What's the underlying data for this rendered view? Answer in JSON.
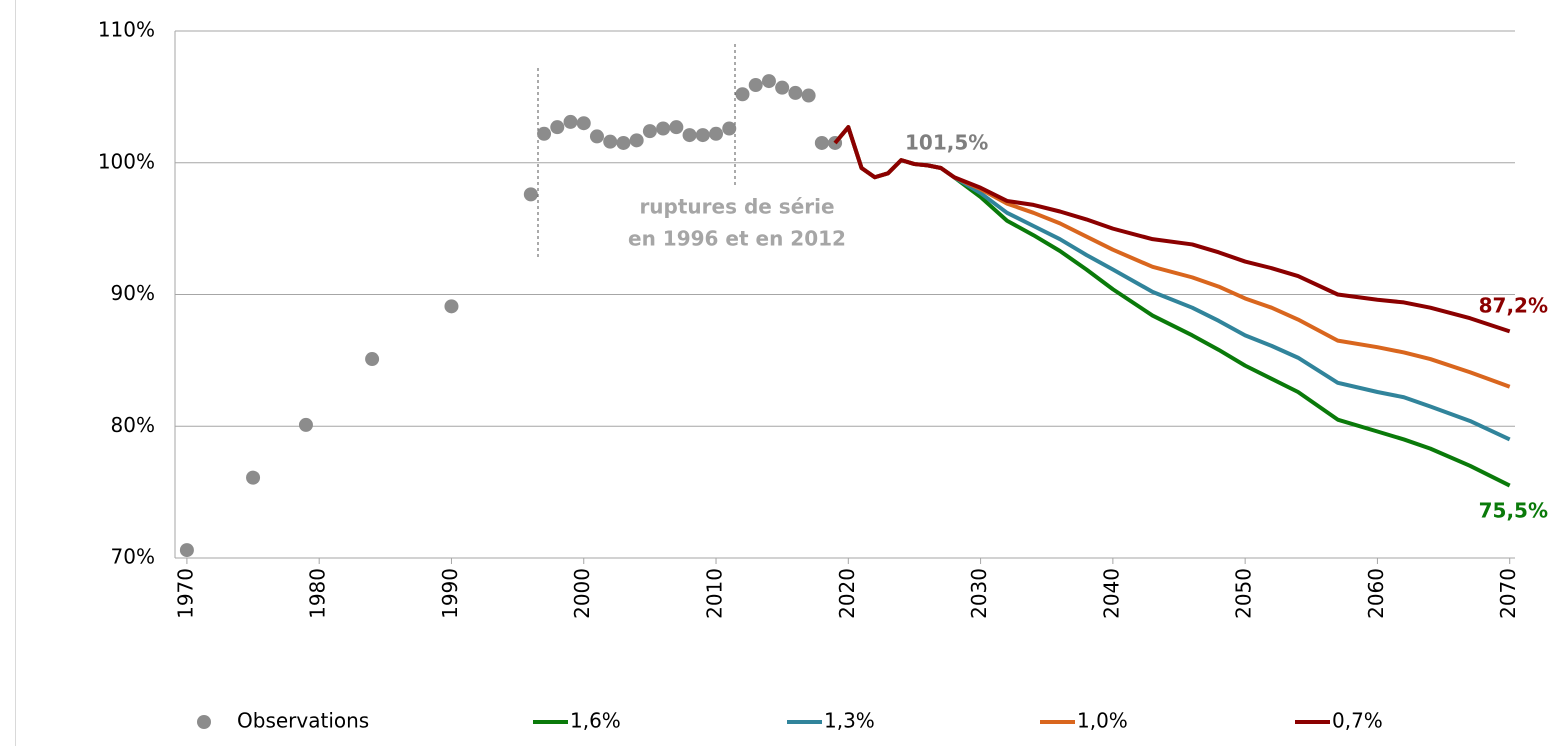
{
  "chart_data": {
    "type": "line",
    "xlim": [
      1969.1,
      2070.4
    ],
    "xticks": [
      1970,
      1980,
      1990,
      2000,
      2010,
      2020,
      2030,
      2040,
      2050,
      2060,
      2070
    ],
    "ylim": [
      70,
      110
    ],
    "yticks": [
      {
        "value": 70,
        "label": "70%"
      },
      {
        "value": 80,
        "label": "80%"
      },
      {
        "value": 90,
        "label": "90%"
      },
      {
        "value": 100,
        "label": "100%"
      },
      {
        "value": 110,
        "label": "110%"
      }
    ],
    "grid": true,
    "legend": "bottom",
    "series": [
      {
        "name": "Observations",
        "color": "#8c8c8c",
        "style": "markers",
        "x": [
          1970,
          1975,
          1979,
          1984,
          1990,
          1996,
          1997,
          1998,
          1999,
          2000,
          2001,
          2002,
          2003,
          2004,
          2005,
          2006,
          2007,
          2008,
          2009,
          2010,
          2011,
          2012,
          2013,
          2014,
          2015,
          2016,
          2017,
          2018,
          2019
        ],
        "values": [
          70.6,
          76.1,
          80.1,
          85.1,
          89.1,
          97.6,
          102.2,
          102.7,
          103.1,
          103.0,
          102.0,
          101.6,
          101.5,
          101.7,
          102.4,
          102.6,
          102.7,
          102.1,
          102.1,
          102.2,
          102.6,
          105.2,
          105.9,
          106.2,
          105.7,
          105.3,
          105.1,
          101.5,
          101.5
        ]
      },
      {
        "name": "1,6%",
        "color": "#0a7a0a",
        "style": "line",
        "x": [
          2019,
          2020,
          2021,
          2022,
          2023,
          2024,
          2025,
          2026,
          2027,
          2028,
          2030,
          2032,
          2034,
          2036,
          2038,
          2040,
          2043,
          2046,
          2048,
          2050,
          2052,
          2054,
          2057,
          2060,
          2062,
          2064,
          2067,
          2070
        ],
        "values": [
          101.5,
          102.7,
          99.6,
          98.9,
          99.2,
          100.2,
          99.9,
          99.8,
          99.6,
          98.9,
          97.4,
          95.6,
          94.5,
          93.3,
          91.9,
          90.4,
          88.4,
          86.9,
          85.8,
          84.6,
          83.6,
          82.6,
          80.5,
          79.6,
          79.0,
          78.3,
          77.0,
          75.5
        ]
      },
      {
        "name": "1,3%",
        "color": "#31849b",
        "style": "line",
        "x": [
          2019,
          2020,
          2021,
          2022,
          2023,
          2024,
          2025,
          2026,
          2027,
          2028,
          2030,
          2032,
          2034,
          2036,
          2038,
          2040,
          2043,
          2046,
          2048,
          2050,
          2052,
          2054,
          2057,
          2060,
          2062,
          2064,
          2067,
          2070
        ],
        "values": [
          101.5,
          102.7,
          99.6,
          98.9,
          99.2,
          100.2,
          99.9,
          99.8,
          99.6,
          98.9,
          97.7,
          96.2,
          95.2,
          94.2,
          93.0,
          91.9,
          90.2,
          89.0,
          88.0,
          86.9,
          86.1,
          85.2,
          83.3,
          82.6,
          82.2,
          81.5,
          80.4,
          79.0
        ]
      },
      {
        "name": "1,0%",
        "color": "#d9661e",
        "style": "line",
        "x": [
          2019,
          2020,
          2021,
          2022,
          2023,
          2024,
          2025,
          2026,
          2027,
          2028,
          2030,
          2032,
          2034,
          2036,
          2038,
          2040,
          2043,
          2046,
          2048,
          2050,
          2052,
          2054,
          2057,
          2060,
          2062,
          2064,
          2067,
          2070
        ],
        "values": [
          101.5,
          102.7,
          99.6,
          98.9,
          99.2,
          100.2,
          99.9,
          99.8,
          99.6,
          98.9,
          98.0,
          96.9,
          96.2,
          95.4,
          94.4,
          93.4,
          92.1,
          91.3,
          90.6,
          89.7,
          89.0,
          88.1,
          86.5,
          86.0,
          85.6,
          85.1,
          84.1,
          83.0
        ]
      },
      {
        "name": "0,7%",
        "color": "#8b0000",
        "style": "line",
        "x": [
          2019,
          2020,
          2021,
          2022,
          2023,
          2024,
          2025,
          2026,
          2027,
          2028,
          2030,
          2032,
          2034,
          2036,
          2038,
          2040,
          2043,
          2046,
          2048,
          2050,
          2052,
          2054,
          2057,
          2060,
          2062,
          2064,
          2067,
          2070
        ],
        "values": [
          101.5,
          102.7,
          99.6,
          98.9,
          99.2,
          100.2,
          99.9,
          99.8,
          99.6,
          98.9,
          98.1,
          97.1,
          96.8,
          96.3,
          95.7,
          95.0,
          94.2,
          93.8,
          93.2,
          92.5,
          92.0,
          91.4,
          90.0,
          89.6,
          89.4,
          89.0,
          88.2,
          87.2
        ]
      }
    ],
    "annotations": [
      "101,5%",
      "87,2%",
      "75,5%",
      "ruptures de série",
      "en 1996 et en 2012"
    ]
  }
}
